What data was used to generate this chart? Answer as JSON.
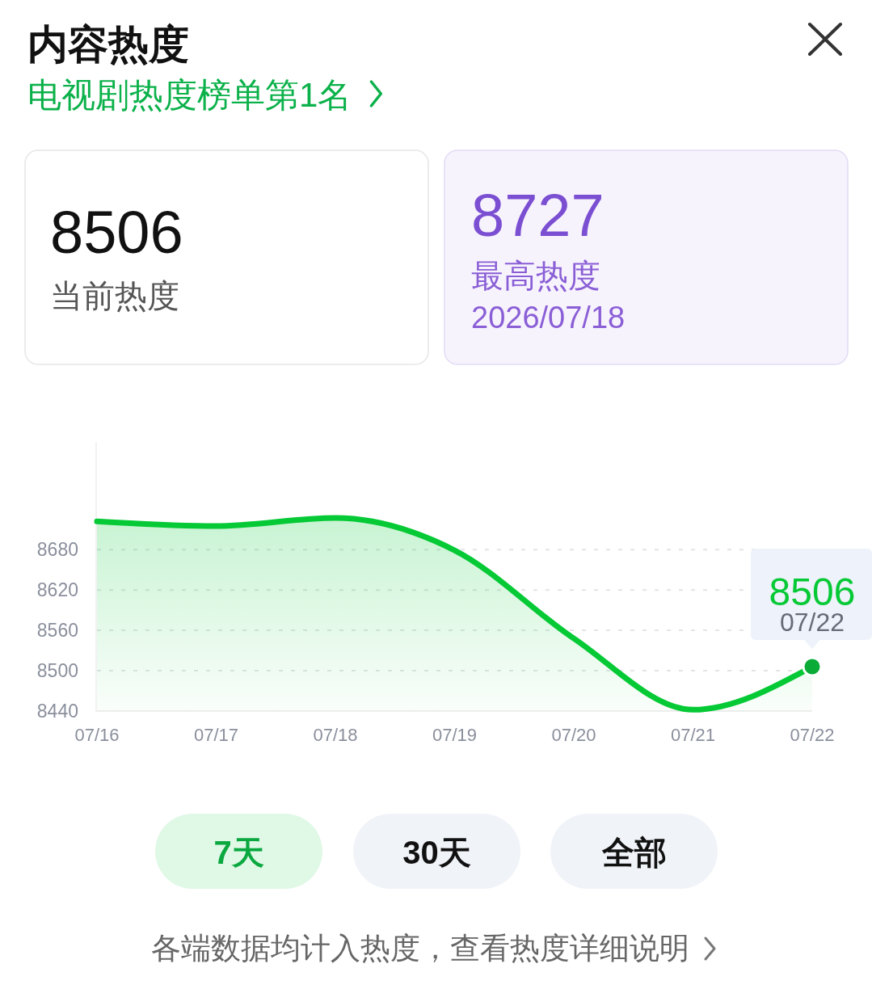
{
  "chart_data": {
    "type": "area",
    "title": "内容热度",
    "subtitle": "电视剧热度榜单第1名",
    "categories": [
      "07/16",
      "07/17",
      "07/18",
      "07/19",
      "07/20",
      "07/21",
      "07/22"
    ],
    "series": [
      {
        "color": "#05c935",
        "values": [
          8722,
          8715,
          8727,
          8679,
          8548,
          8442,
          8506
        ]
      },
      {
        "type": "scatter",
        "color": "#0aab36",
        "x": [
          "07/22"
        ],
        "values": [
          8506
        ]
      }
    ],
    "ylim": [
      8440,
      8840
    ],
    "yticks": [
      8440,
      8500,
      8560,
      8620,
      8680
    ],
    "grid": "y",
    "annotations": [
      "8506",
      "当前热度",
      "8727",
      "最高热度",
      "2026/07/18",
      "7天",
      "30天",
      "全部",
      "各端数据均计入热度，查看热度详细说明",
      {
        "text": "8506",
        "x": "07/22",
        "y": 8506
      },
      {
        "text": "07/22",
        "x": "07/22",
        "y": 8506
      }
    ]
  }
}
